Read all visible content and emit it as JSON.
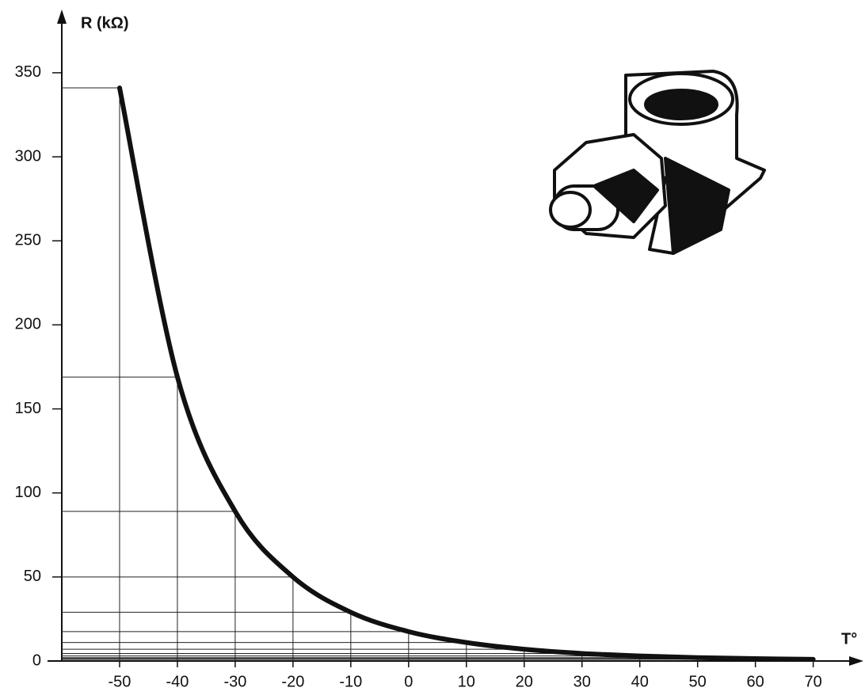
{
  "chart_data": {
    "type": "line",
    "y_label": "R (kΩ)",
    "x_label": "T°",
    "x": [
      -50,
      -40,
      -30,
      -20,
      -10,
      0,
      10,
      20,
      30,
      40,
      50,
      60,
      70
    ],
    "series": [
      {
        "color": "#111111",
        "values": [
          341,
          169,
          89,
          50,
          29,
          17.5,
          11,
          7,
          4.5,
          3,
          2,
          1.4,
          1
        ]
      }
    ],
    "xlim": [
      -60,
      78
    ],
    "ylim": [
      0,
      385
    ],
    "xticks": [
      -50,
      -40,
      -30,
      -20,
      -10,
      0,
      10,
      20,
      30,
      40,
      50,
      60,
      70
    ],
    "yticks": [
      0,
      50,
      100,
      150,
      200,
      250,
      300,
      350
    ],
    "drop_lines": true
  }
}
